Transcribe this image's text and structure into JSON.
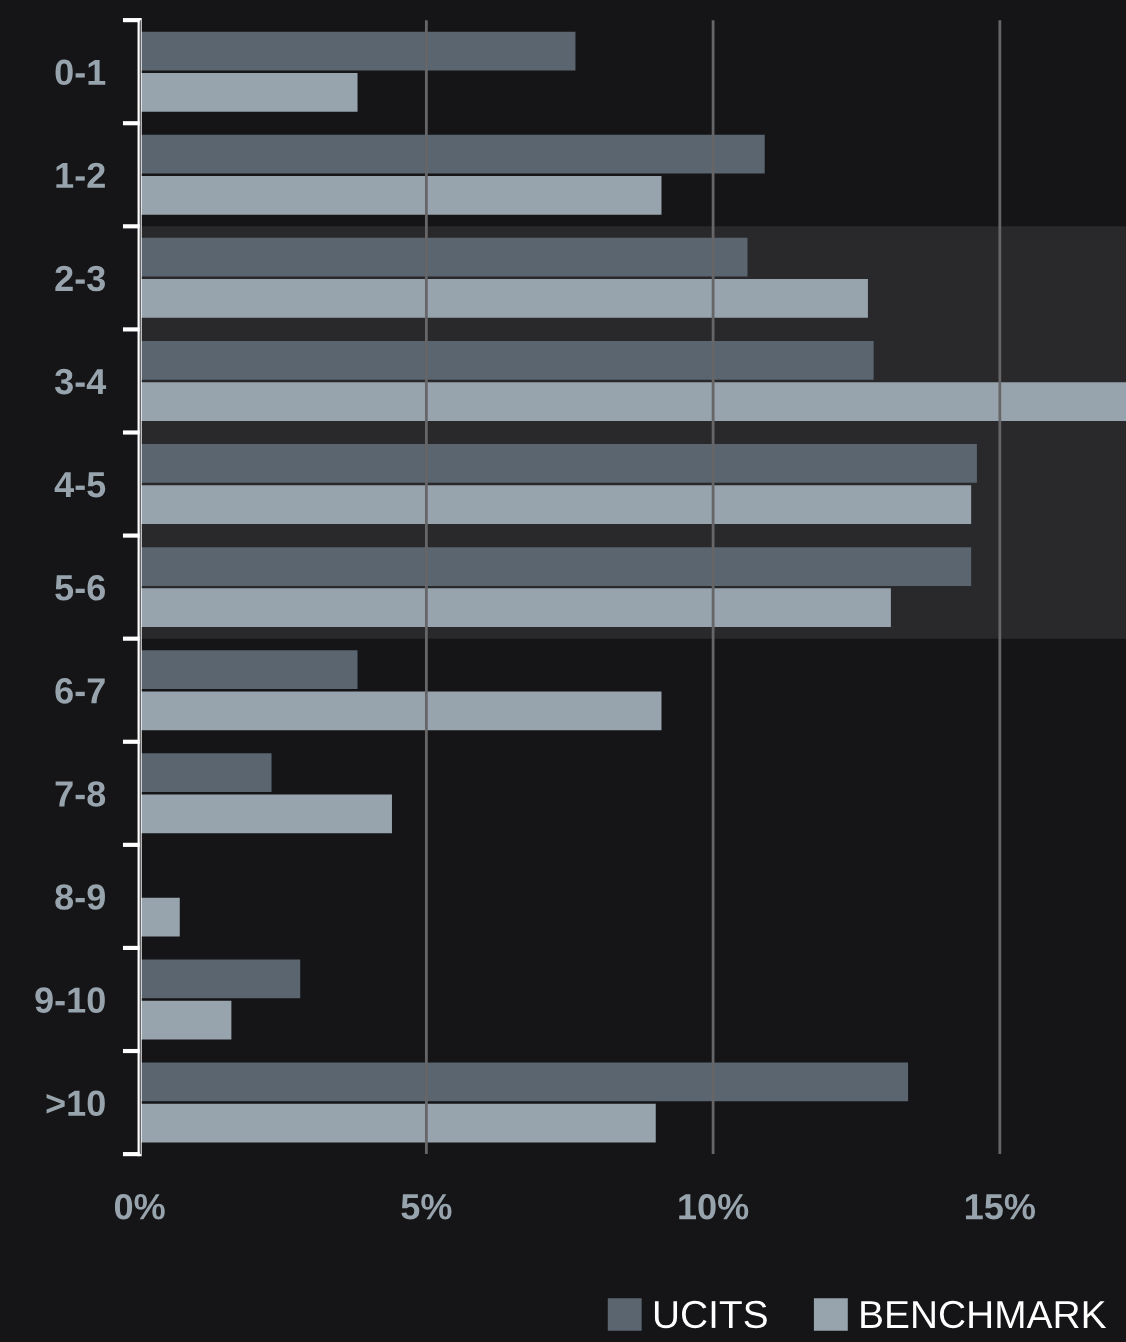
{
  "chart_data": {
    "type": "bar",
    "orientation": "horizontal",
    "categories": [
      "0-1",
      "1-2",
      "2-3",
      "3-4",
      "4-5",
      "5-6",
      "6-7",
      "7-8",
      "8-9",
      "9-10",
      ">10"
    ],
    "series": [
      {
        "name": "UCITS",
        "color": "#5a6570",
        "values": [
          7.6,
          10.9,
          10.6,
          12.8,
          14.6,
          14.5,
          3.8,
          2.3,
          null,
          2.8,
          13.4
        ]
      },
      {
        "name": "BENCHMARK",
        "color": "#98a4ad",
        "values": [
          3.8,
          9.1,
          12.7,
          17.2,
          14.5,
          13.1,
          9.1,
          4.4,
          0.7,
          1.6,
          9.0
        ]
      }
    ],
    "xlim": [
      0,
      17.2
    ],
    "xticks": [
      {
        "value": 0,
        "label": "0%"
      },
      {
        "value": 5,
        "label": "5%"
      },
      {
        "value": 10,
        "label": "10%"
      },
      {
        "value": 15,
        "label": "15%"
      }
    ],
    "bands": [
      {
        "axis": "y",
        "from": "2-3",
        "to": "5-6",
        "color": "#29292b"
      }
    ],
    "grid": "x",
    "legend": "bottom right"
  }
}
